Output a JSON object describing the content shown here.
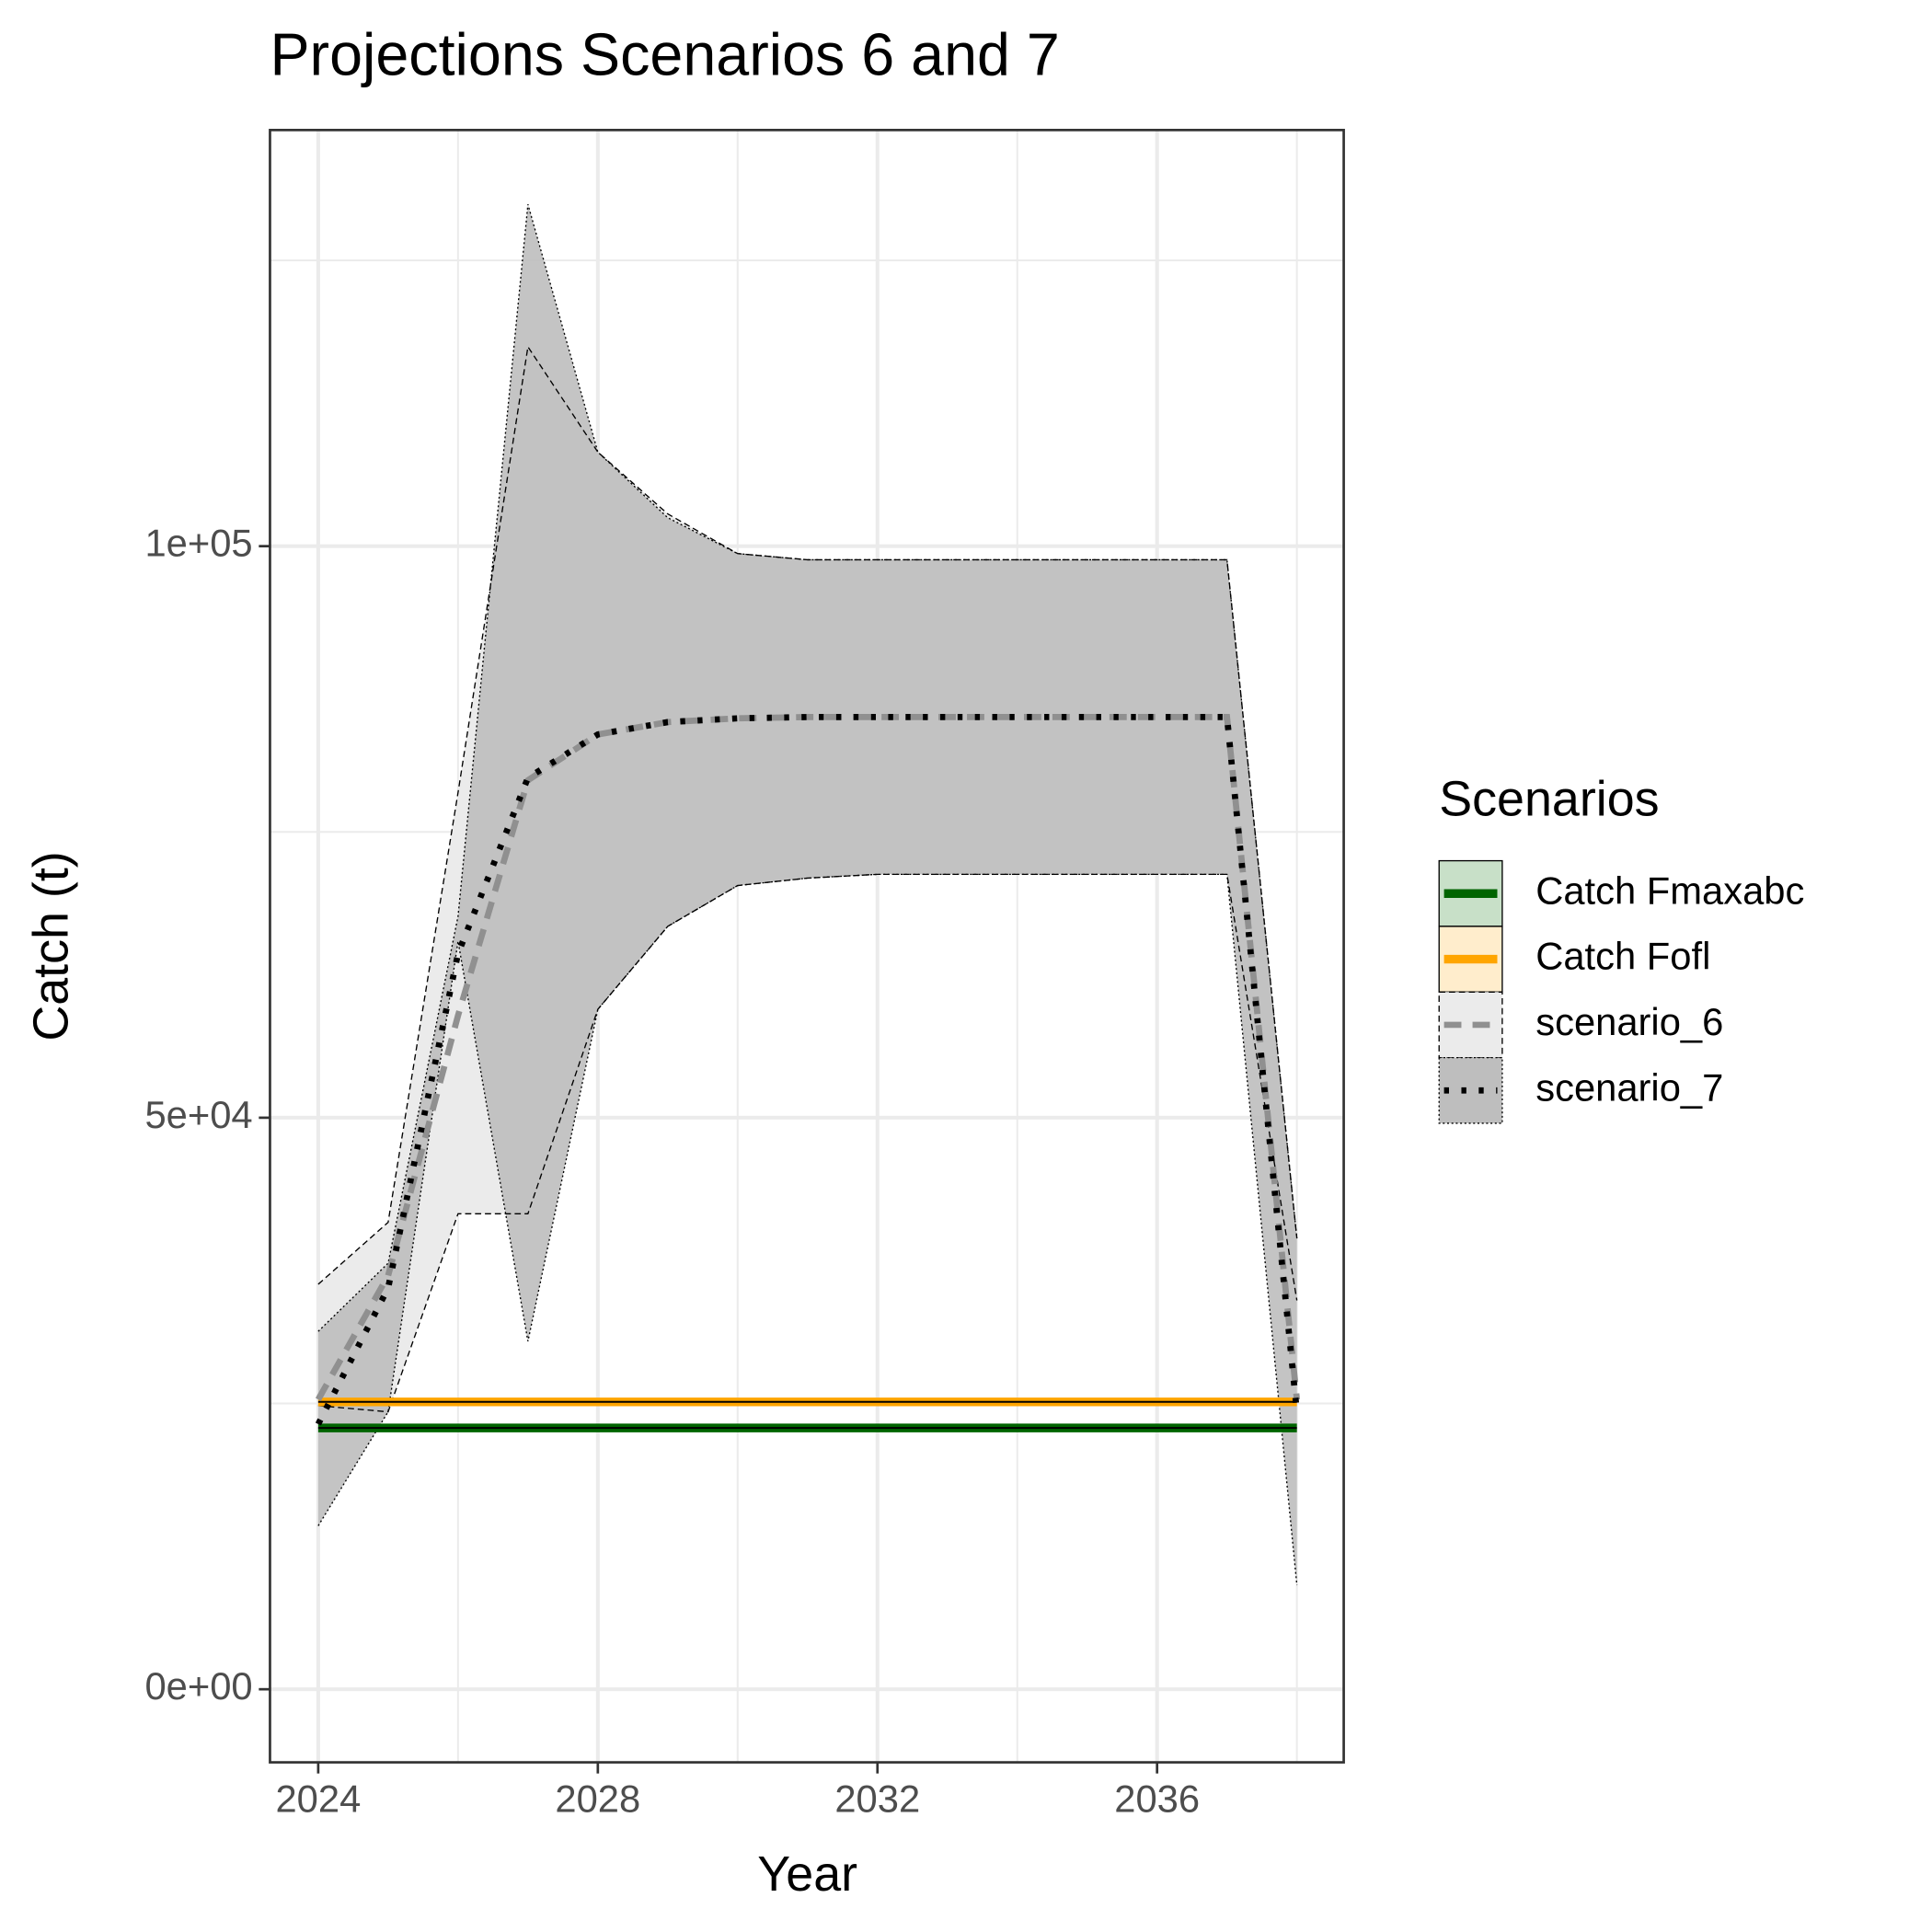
{
  "chart_data": {
    "type": "line",
    "title": "Projections Scenarios 6 and 7",
    "x_label": "Year",
    "y_label": "Catch (t)",
    "x": [
      2024,
      2025,
      2026,
      2027,
      2028,
      2029,
      2030,
      2031,
      2032,
      2033,
      2034,
      2035,
      2036,
      2037,
      2038
    ],
    "xlim": [
      2023.31,
      2038.67
    ],
    "xticks": [
      2024,
      2028,
      2032,
      2036
    ],
    "xminor": [
      2026,
      2030,
      2034,
      2038
    ],
    "ylim": [
      -6392,
      136403
    ],
    "yticks": [
      {
        "value": 0,
        "label": "0e+00"
      },
      {
        "value": 50000,
        "label": "5e+04"
      },
      {
        "value": 100000,
        "label": "1e+05"
      }
    ],
    "yminor": [
      25000,
      75000,
      125000
    ],
    "grid": true,
    "legend_title": "Scenarios",
    "legend_position": "right",
    "series": [
      {
        "name": "Catch Fmaxabc",
        "color": "#006400",
        "key_fill": "#c8e0c8",
        "linetype": "solid",
        "values": [
          22860,
          22860,
          22860,
          22860,
          22860,
          22860,
          22860,
          22860,
          22860,
          22860,
          22860,
          22860,
          22860,
          22860,
          22860
        ]
      },
      {
        "name": "Catch Fofl",
        "color": "#ffa500",
        "key_fill": "#ffedcc",
        "linetype": "solid",
        "values": [
          25140,
          25140,
          25140,
          25140,
          25140,
          25140,
          25140,
          25140,
          25140,
          25140,
          25140,
          25140,
          25140,
          25140,
          25140
        ]
      },
      {
        "name": "scenario_6",
        "color": "#909090",
        "key_fill": "#ebebeb",
        "linetype": "dashed",
        "values": [
          25350,
          36190,
          58940,
          79520,
          83530,
          84610,
          84940,
          85050,
          85050,
          85050,
          85050,
          85050,
          85050,
          85050,
          25350
        ],
        "upper": [
          35430,
          40850,
          78440,
          117440,
          108230,
          102820,
          99350,
          98810,
          98810,
          98810,
          98810,
          98810,
          98810,
          98810,
          39440
        ],
        "lower": [
          24810,
          24270,
          41600,
          41600,
          59480,
          66740,
          70310,
          70960,
          71290,
          71290,
          71290,
          71290,
          71290,
          71290,
          34020
        ]
      },
      {
        "name": "scenario_7",
        "color": "#000000",
        "key_fill": "#bebebe",
        "linetype": "dotted",
        "values": [
          23200,
          35100,
          64360,
          79740,
          83530,
          84610,
          84940,
          85050,
          85050,
          85050,
          85050,
          85050,
          85050,
          85050,
          24270
        ],
        "upper": [
          31310,
          37270,
          67610,
          129900,
          108230,
          102490,
          99350,
          98810,
          98810,
          98810,
          98810,
          98810,
          98810,
          98810,
          39440
        ],
        "lower": [
          14300,
          24270,
          65440,
          30440,
          59480,
          66740,
          70310,
          70960,
          71290,
          71290,
          71290,
          71290,
          71290,
          71290,
          9100
        ]
      }
    ]
  }
}
